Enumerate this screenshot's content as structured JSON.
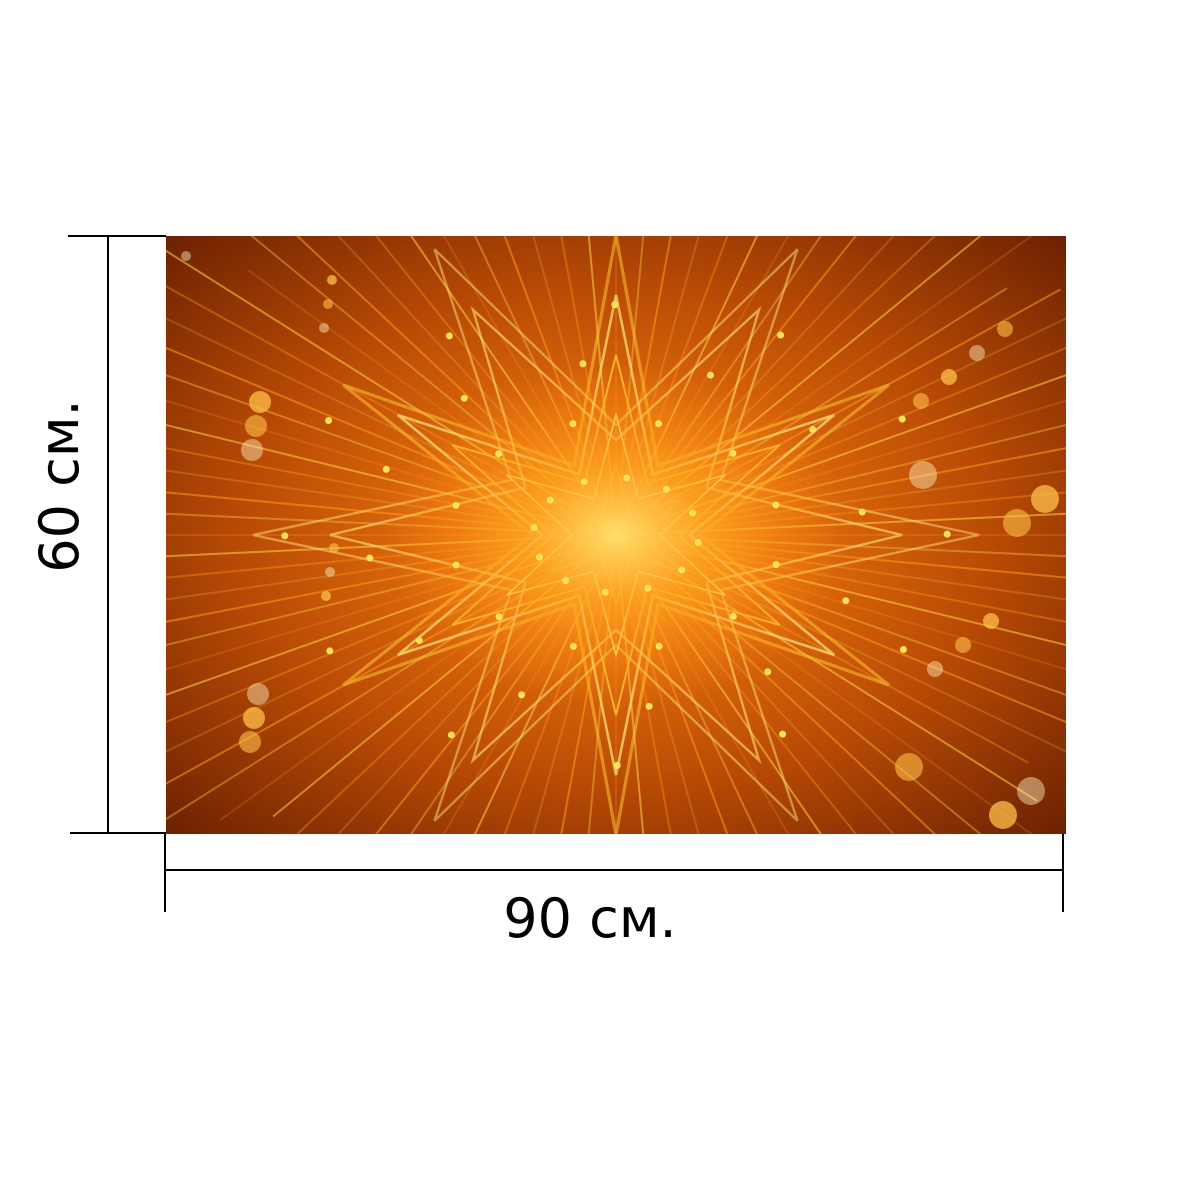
{
  "product": {
    "width_label": "90 см.",
    "height_label": "60 см."
  },
  "artwork": {
    "description_icon": "kaleidoscope-star-image",
    "colors": {
      "background": "#b84a05",
      "deep": "#7a2402",
      "mid": "#e0700e",
      "glow": "#ffd24a",
      "highlight": "#fff3b0"
    }
  },
  "dimension_lines": {
    "color": "#000000"
  }
}
